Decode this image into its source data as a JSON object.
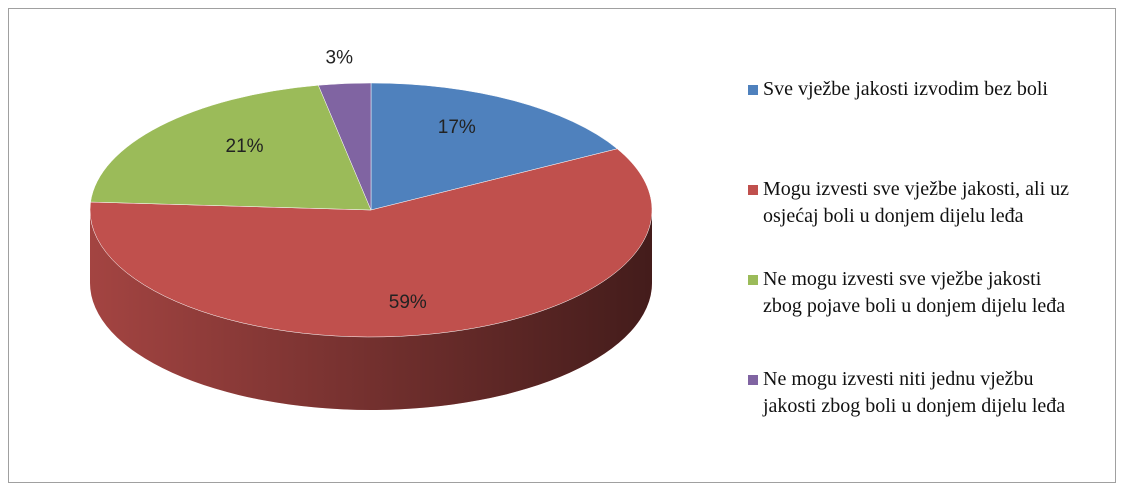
{
  "chart_data": {
    "type": "pie",
    "categories": [
      "Sve vježbe jakosti izvodim bez boli",
      "Mogu izvesti sve vježbe jakosti, ali uz osjećaj boli u donjem dijelu leđa",
      "Ne mogu izvesti sve vježbe jakosti zbog pojave boli u donjem dijelu leđa",
      "Ne mogu izvesti niti jednu vježbu jakosti zbog boli u donjem dijelu leđa"
    ],
    "values": [
      17,
      59,
      21,
      3
    ],
    "value_labels": [
      "17%",
      "59%",
      "21%",
      "3%"
    ],
    "colors": [
      "#4f81bd",
      "#c0504d",
      "#9bbb59",
      "#8064a2"
    ],
    "legend": "right"
  }
}
